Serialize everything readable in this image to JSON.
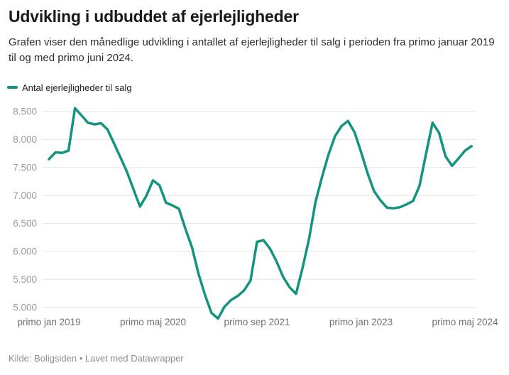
{
  "header": {
    "title": "Udvikling i udbuddet af ejerlejligheder",
    "description": "Grafen viser den månedlige udvikling i antallet af ejerlejligheder til salg i perioden fra primo januar 2019 til og med primo juni 2024."
  },
  "legend": {
    "label": "Antal ejerlejligheder til salg",
    "color": "#13947f"
  },
  "chart_data": {
    "type": "line",
    "title": "Udvikling i udbuddet af ejerlejligheder",
    "series_name": "Antal ejerlejligheder til salg",
    "xlabel": "",
    "ylabel": "",
    "x_start": "2019-01",
    "x_end": "2024-06",
    "grid": true,
    "legend_position": "top-left",
    "line_color": "#13947f",
    "ylim": [
      4800,
      8560
    ],
    "grid_lines_at": [
      5000,
      5500,
      6000,
      6500,
      7000,
      7500,
      8000,
      8500
    ],
    "months": [
      "2019-01",
      "2019-02",
      "2019-03",
      "2019-04",
      "2019-05",
      "2019-06",
      "2019-07",
      "2019-08",
      "2019-09",
      "2019-10",
      "2019-11",
      "2019-12",
      "2020-01",
      "2020-02",
      "2020-03",
      "2020-04",
      "2020-05",
      "2020-06",
      "2020-07",
      "2020-08",
      "2020-09",
      "2020-10",
      "2020-11",
      "2020-12",
      "2021-01",
      "2021-02",
      "2021-03",
      "2021-04",
      "2021-05",
      "2021-06",
      "2021-07",
      "2021-08",
      "2021-09",
      "2021-10",
      "2021-11",
      "2021-12",
      "2022-01",
      "2022-02",
      "2022-03",
      "2022-04",
      "2022-05",
      "2022-06",
      "2022-07",
      "2022-08",
      "2022-09",
      "2022-10",
      "2022-11",
      "2022-12",
      "2023-01",
      "2023-02",
      "2023-03",
      "2023-04",
      "2023-05",
      "2023-06",
      "2023-07",
      "2023-08",
      "2023-09",
      "2023-10",
      "2023-11",
      "2023-12",
      "2024-01",
      "2024-02",
      "2024-03",
      "2024-04",
      "2024-05",
      "2024-06"
    ],
    "values": [
      7650,
      7770,
      7760,
      7800,
      8560,
      8430,
      8300,
      8270,
      8290,
      8180,
      7930,
      7680,
      7420,
      7110,
      6800,
      7000,
      7270,
      7180,
      6870,
      6820,
      6760,
      6400,
      6070,
      5600,
      5220,
      4900,
      4800,
      5010,
      5130,
      5200,
      5300,
      5480,
      6170,
      6200,
      6050,
      5820,
      5550,
      5360,
      5240,
      5700,
      6220,
      6880,
      7330,
      7730,
      8060,
      8240,
      8330,
      8130,
      7780,
      7400,
      7080,
      6910,
      6780,
      6770,
      6790,
      6840,
      6900,
      7170,
      7740,
      8300,
      8120,
      7700,
      7530,
      7660,
      7800,
      7880
    ],
    "y_ticks": [
      {
        "value": 8500,
        "label": "8.500"
      },
      {
        "value": 8000,
        "label": "8.000"
      },
      {
        "value": 7500,
        "label": "7.500"
      },
      {
        "value": 7000,
        "label": "7.000"
      },
      {
        "value": 6500,
        "label": "6.500"
      },
      {
        "value": 6000,
        "label": "6.000"
      },
      {
        "value": 5500,
        "label": "5.500"
      },
      {
        "value": 5000,
        "label": "5.000"
      }
    ],
    "x_ticks": [
      {
        "month_index": 0,
        "label": "primo jan 2019"
      },
      {
        "month_index": 16,
        "label": "primo maj 2020"
      },
      {
        "month_index": 32,
        "label": "primo sep 2021"
      },
      {
        "month_index": 48,
        "label": "primo jan 2023"
      },
      {
        "month_index": 64,
        "label": "primo maj 2024"
      }
    ]
  },
  "footer": {
    "text": "Kilde: Boligsiden • Lavet med Datawrapper"
  }
}
